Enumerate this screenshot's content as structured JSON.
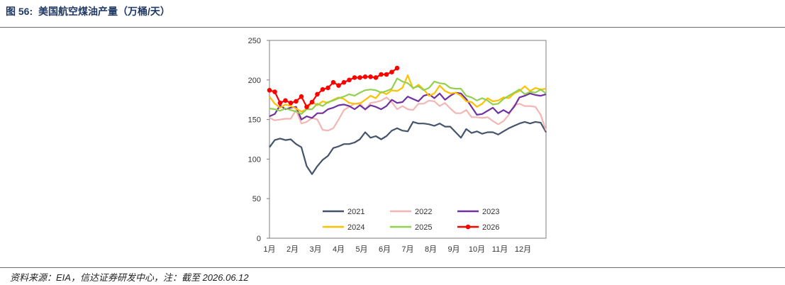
{
  "figure": {
    "number_label": "图 56:",
    "title": "美国航空煤油产量（万桶/天）"
  },
  "source": "资料来源：EIA，信达证券研发中心，注：截至 2026.06.12",
  "chart_data": {
    "type": "line",
    "title": "美国航空煤油产量（万桶/天）",
    "xlabel": "",
    "ylabel": "",
    "ylim": [
      0,
      250
    ],
    "yticks": [
      0,
      50,
      100,
      150,
      200,
      250
    ],
    "xticks": [
      "1月",
      "2月",
      "3月",
      "4月",
      "5月",
      "6月",
      "7月",
      "8月",
      "9月",
      "10月",
      "11月",
      "12月"
    ],
    "x_unit": "week",
    "xlim": [
      1,
      53
    ],
    "grid": false,
    "legend_position": "bottom-inside",
    "series": [
      {
        "name": "2021",
        "color": "#44546a",
        "marker": false,
        "values": [
          115,
          124,
          126,
          124,
          125,
          119,
          115,
          91,
          81,
          91,
          99,
          104,
          114,
          116,
          119,
          119,
          121,
          125,
          134,
          127,
          129,
          125,
          129,
          136,
          139,
          136,
          135,
          147,
          145,
          145,
          144,
          142,
          145,
          141,
          141,
          134,
          127,
          138,
          133,
          135,
          132,
          134,
          134,
          131,
          135,
          139,
          142,
          145,
          147,
          145,
          147,
          146,
          134
        ]
      },
      {
        "name": "2022",
        "color": "#f4b6b4",
        "marker": false,
        "values": [
          152,
          149,
          150,
          151,
          151,
          162,
          145,
          147,
          152,
          150,
          137,
          136,
          139,
          150,
          162,
          166,
          170,
          171,
          162,
          171,
          172,
          174,
          178,
          172,
          163,
          167,
          163,
          162,
          170,
          170,
          174,
          173,
          167,
          171,
          164,
          158,
          158,
          162,
          153,
          153,
          152,
          153,
          148,
          144,
          148,
          156,
          168,
          170,
          167,
          167,
          166,
          156,
          136
        ]
      },
      {
        "name": "2023",
        "color": "#7030a0",
        "marker": false,
        "values": [
          154,
          157,
          168,
          163,
          165,
          166,
          150,
          154,
          152,
          158,
          158,
          163,
          165,
          168,
          169,
          167,
          163,
          168,
          163,
          168,
          166,
          163,
          167,
          175,
          171,
          172,
          179,
          176,
          173,
          180,
          182,
          177,
          183,
          175,
          180,
          184,
          183,
          176,
          166,
          156,
          157,
          161,
          165,
          158,
          162,
          158,
          166,
          178,
          180,
          183,
          181,
          180,
          182
        ]
      },
      {
        "name": "2024",
        "color": "#ffc000",
        "marker": false,
        "values": [
          179,
          170,
          165,
          169,
          167,
          164,
          160,
          163,
          172,
          168,
          173,
          171,
          175,
          178,
          176,
          171,
          170,
          170,
          175,
          180,
          177,
          185,
          182,
          187,
          186,
          190,
          206,
          189,
          194,
          188,
          180,
          183,
          193,
          186,
          183,
          184,
          180,
          173,
          172,
          166,
          170,
          177,
          173,
          174,
          178,
          177,
          183,
          186,
          192,
          186,
          190,
          188,
          189
        ]
      },
      {
        "name": "2025",
        "color": "#92d050",
        "marker": false,
        "values": [
          164,
          163,
          161,
          164,
          162,
          160,
          157,
          163,
          163,
          170,
          167,
          172,
          174,
          177,
          179,
          182,
          180,
          184,
          187,
          188,
          187,
          184,
          186,
          189,
          202,
          198,
          196,
          190,
          192,
          187,
          190,
          198,
          196,
          195,
          190,
          189,
          189,
          180,
          178,
          174,
          177,
          174,
          169,
          170,
          176,
          180,
          184,
          188,
          182,
          185,
          184,
          188,
          183
        ]
      },
      {
        "name": "2026",
        "color": "#ff0000",
        "marker": true,
        "values": [
          187,
          185,
          171,
          174,
          171,
          173,
          179,
          166,
          172,
          182,
          188,
          190,
          197,
          193,
          197,
          200,
          203,
          203,
          204,
          204,
          203,
          207,
          207,
          210,
          215
        ]
      }
    ]
  }
}
